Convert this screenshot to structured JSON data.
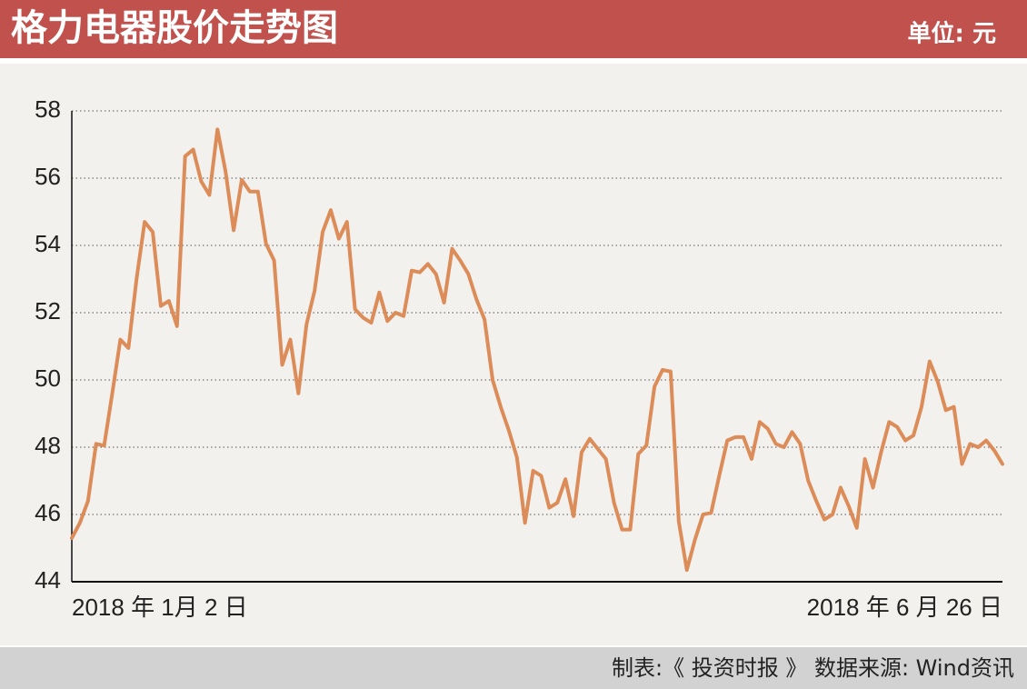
{
  "chart_data": {
    "type": "line",
    "title": "格力电器股价走势图",
    "unit_label": "单位: 元",
    "source": "制表:《 投资时报 》 数据来源: Wind资讯",
    "categories": [
      "2018 年 1月 2 日",
      null,
      null,
      null,
      null,
      null,
      null,
      null,
      null,
      null,
      null,
      null,
      null,
      null,
      null,
      null,
      null,
      null,
      null,
      null,
      null,
      null,
      null,
      null,
      null,
      null,
      null,
      null,
      null,
      null,
      null,
      null,
      null,
      null,
      null,
      null,
      null,
      null,
      null,
      null,
      null,
      null,
      null,
      null,
      null,
      null,
      null,
      null,
      null,
      null,
      null,
      null,
      null,
      null,
      null,
      null,
      null,
      null,
      null,
      null,
      null,
      null,
      null,
      null,
      null,
      null,
      null,
      null,
      null,
      null,
      null,
      null,
      null,
      null,
      null,
      null,
      null,
      null,
      null,
      null,
      null,
      null,
      null,
      null,
      null,
      null,
      null,
      null,
      null,
      null,
      null,
      null,
      null,
      null,
      null,
      null,
      null,
      null,
      null,
      null,
      null,
      null,
      null,
      null,
      null,
      null,
      null,
      null,
      null,
      null,
      null,
      null,
      null,
      null,
      null,
      "2018 年 6 月 26 日"
    ],
    "values": [
      45.3,
      45.75,
      46.4,
      48.1,
      48.05,
      49.6,
      51.2,
      50.95,
      53.0,
      54.7,
      54.4,
      52.2,
      52.35,
      51.6,
      56.65,
      56.85,
      55.9,
      55.5,
      57.45,
      56.2,
      54.45,
      55.95,
      55.6,
      55.6,
      54.05,
      53.55,
      50.45,
      51.2,
      49.6,
      51.65,
      52.65,
      54.4,
      55.05,
      54.2,
      54.7,
      52.1,
      51.85,
      51.7,
      52.6,
      51.75,
      52.0,
      51.9,
      53.25,
      53.2,
      53.45,
      53.15,
      52.3,
      53.9,
      53.55,
      53.15,
      52.4,
      51.8,
      50.0,
      49.2,
      48.5,
      47.7,
      45.75,
      47.3,
      47.15,
      46.2,
      46.35,
      47.05,
      45.95,
      47.85,
      48.25,
      47.95,
      47.65,
      46.35,
      45.55,
      45.55,
      47.8,
      48.05,
      49.8,
      50.3,
      50.25,
      45.8,
      44.35,
      45.25,
      46.0,
      46.05,
      47.15,
      48.2,
      48.3,
      48.3,
      47.65,
      48.75,
      48.55,
      48.1,
      48.0,
      48.45,
      48.1,
      47.0,
      46.4,
      45.85,
      46.0,
      46.8,
      46.25,
      45.6,
      47.65,
      46.8,
      47.85,
      48.75,
      48.6,
      48.2,
      48.35,
      49.2,
      50.55,
      49.95,
      49.1,
      49.2,
      47.5,
      48.1,
      48.0,
      48.2,
      47.9,
      47.5
    ],
    "color": "#dc8c58",
    "ylim": [
      44,
      58
    ],
    "yticks": [
      44,
      46,
      48,
      50,
      52,
      54,
      56,
      58
    ],
    "grid": true
  }
}
